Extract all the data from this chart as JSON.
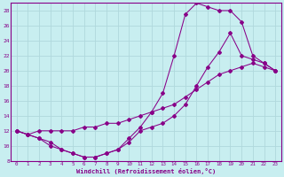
{
  "xlabel": "Windchill (Refroidissement éolien,°C)",
  "bg_color": "#c8eef0",
  "grid_color": "#b0d8dc",
  "line_color": "#880088",
  "xlim": [
    -0.5,
    23.5
  ],
  "ylim": [
    8,
    29
  ],
  "yticks": [
    8,
    10,
    12,
    14,
    16,
    18,
    20,
    22,
    24,
    26,
    28
  ],
  "xticks": [
    0,
    1,
    2,
    3,
    4,
    5,
    6,
    7,
    8,
    9,
    10,
    11,
    12,
    13,
    14,
    15,
    16,
    17,
    18,
    19,
    20,
    21,
    22,
    23
  ],
  "line1_x": [
    0,
    1,
    2,
    3,
    4,
    5,
    6,
    7,
    8,
    9,
    10,
    11,
    12,
    13,
    14,
    15,
    16,
    17,
    18,
    19,
    20,
    21,
    22,
    23
  ],
  "line1_y": [
    12.0,
    11.5,
    11.0,
    10.5,
    9.5,
    9.0,
    8.5,
    8.5,
    9.0,
    9.5,
    11.0,
    12.5,
    14.5,
    17.0,
    22.0,
    27.5,
    29.0,
    28.5,
    28.0,
    28.0,
    26.5,
    22.0,
    21.0,
    20.0
  ],
  "line2_x": [
    0,
    1,
    2,
    3,
    4,
    5,
    6,
    7,
    8,
    9,
    10,
    11,
    12,
    13,
    14,
    15,
    16,
    17,
    18,
    19,
    20,
    21,
    22,
    23
  ],
  "line2_y": [
    12.0,
    11.5,
    12.0,
    12.0,
    12.0,
    12.0,
    12.5,
    12.5,
    13.0,
    13.0,
    13.5,
    14.0,
    14.5,
    15.0,
    15.5,
    16.5,
    17.5,
    18.5,
    19.5,
    20.0,
    20.5,
    21.0,
    20.5,
    20.0
  ],
  "line3_x": [
    0,
    1,
    2,
    3,
    4,
    5,
    6,
    7,
    8,
    9,
    10,
    11,
    12,
    13,
    14,
    15,
    16,
    17,
    18,
    19,
    20,
    21,
    22,
    23
  ],
  "line3_y": [
    12.0,
    11.5,
    11.0,
    10.0,
    9.5,
    9.0,
    8.5,
    8.5,
    9.0,
    9.5,
    10.5,
    12.0,
    12.5,
    13.0,
    14.0,
    15.5,
    18.0,
    20.5,
    22.5,
    25.0,
    22.0,
    21.5,
    21.0,
    20.0
  ]
}
